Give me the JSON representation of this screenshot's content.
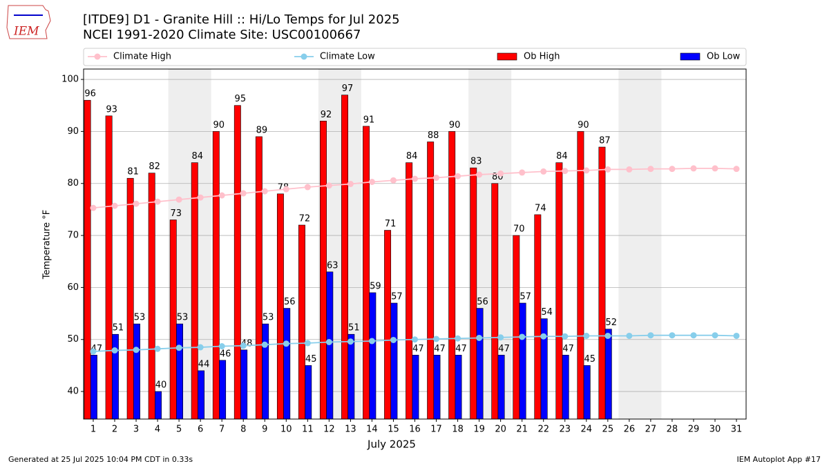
{
  "logo_text": "IEM",
  "footer_left": "Generated at 25 Jul 2025 10:04 PM CDT in 0.33s",
  "footer_right": "IEM Autoplot App #17",
  "chart_data": {
    "type": "bar_line",
    "title": "[ITDE9] D1 - Granite Hill  :: Hi/Lo Temps for Jul 2025",
    "subtitle": "NCEI 1991-2020 Climate Site: USC00100667",
    "x_label": "July 2025",
    "y_label": "Temperature °F",
    "x": [
      1,
      2,
      3,
      4,
      5,
      6,
      7,
      8,
      9,
      10,
      11,
      12,
      13,
      14,
      15,
      16,
      17,
      18,
      19,
      20,
      21,
      22,
      23,
      24,
      25,
      26,
      27,
      28,
      29,
      30,
      31
    ],
    "xlim": [
      0.55,
      31.45
    ],
    "xticks": [
      1,
      2,
      3,
      4,
      5,
      6,
      7,
      8,
      9,
      10,
      11,
      12,
      13,
      14,
      15,
      16,
      17,
      18,
      19,
      20,
      21,
      22,
      23,
      24,
      25,
      26,
      27,
      28,
      29,
      30,
      31
    ],
    "ylim": [
      34.7,
      102
    ],
    "yticks": [
      40,
      50,
      60,
      70,
      80,
      90,
      100
    ],
    "grid": true,
    "shaded_ranges": [
      [
        5,
        6
      ],
      [
        12,
        13
      ],
      [
        19,
        20
      ],
      [
        26,
        27
      ]
    ],
    "series": [
      {
        "name": "Climate High",
        "kind": "line",
        "color": "#ffc0cb",
        "values": [
          75.3,
          75.7,
          76.1,
          76.5,
          76.9,
          77.3,
          77.7,
          78.1,
          78.5,
          78.9,
          79.3,
          79.6,
          79.9,
          80.3,
          80.6,
          80.9,
          81.1,
          81.4,
          81.7,
          81.9,
          82.1,
          82.3,
          82.4,
          82.5,
          82.7,
          82.7,
          82.8,
          82.8,
          82.9,
          82.9,
          82.8
        ]
      },
      {
        "name": "Climate Low",
        "kind": "line",
        "color": "#87ceeb",
        "values": [
          47.7,
          47.9,
          48.0,
          48.2,
          48.4,
          48.5,
          48.7,
          48.8,
          49.0,
          49.2,
          49.3,
          49.5,
          49.6,
          49.7,
          49.9,
          50.0,
          50.1,
          50.2,
          50.3,
          50.4,
          50.5,
          50.6,
          50.6,
          50.7,
          50.7,
          50.7,
          50.8,
          50.8,
          50.8,
          50.8,
          50.7
        ]
      },
      {
        "name": "Ob High",
        "kind": "bar",
        "color": "#ff0000",
        "values": [
          96,
          93,
          81,
          82,
          73,
          84,
          90,
          95,
          89,
          78,
          72,
          92,
          97,
          91,
          71,
          84,
          88,
          90,
          83,
          80,
          70,
          74,
          84,
          90,
          87,
          null,
          null,
          null,
          null,
          null,
          null
        ]
      },
      {
        "name": "Ob Low",
        "kind": "bar",
        "color": "#0000ff",
        "values": [
          47,
          51,
          53,
          40,
          53,
          44,
          46,
          48,
          53,
          56,
          45,
          63,
          51,
          59,
          57,
          47,
          47,
          47,
          56,
          47,
          57,
          54,
          47,
          45,
          52,
          null,
          null,
          null,
          null,
          null,
          null
        ]
      }
    ]
  }
}
